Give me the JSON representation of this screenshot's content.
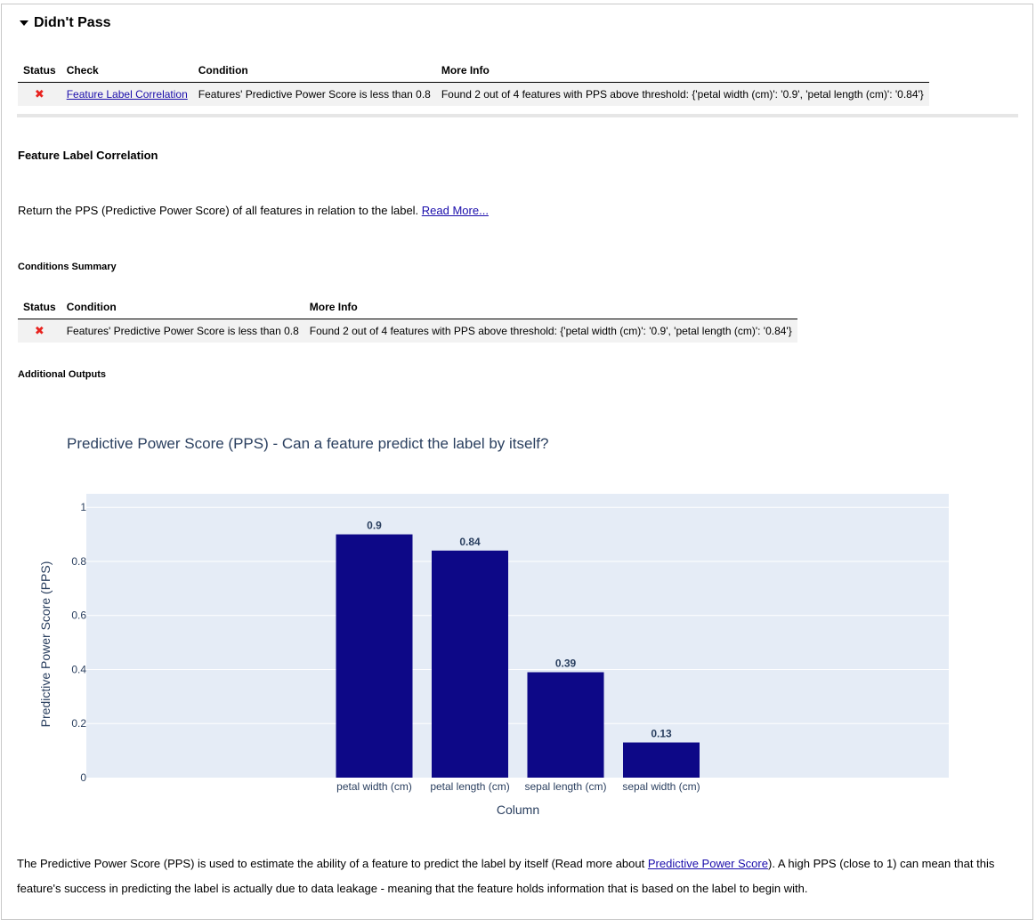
{
  "section": {
    "title": "Didn't Pass"
  },
  "summary_table": {
    "headers": [
      "Status",
      "Check",
      "Condition",
      "More Info"
    ],
    "rows": [
      {
        "status": "✖",
        "check": "Feature Label Correlation",
        "condition": "Features' Predictive Power Score is less than 0.8",
        "more_info": "Found 2 out of 4 features with PPS above threshold: {'petal width (cm)': '0.9', 'petal length (cm)': '0.84'}"
      }
    ]
  },
  "check": {
    "title": "Feature Label Correlation",
    "description": "Return the PPS (Predictive Power Score) of all features in relation to the label. ",
    "read_more": "Read More..."
  },
  "conditions_summary": {
    "title": "Conditions Summary",
    "headers": [
      "Status",
      "Condition",
      "More Info"
    ],
    "rows": [
      {
        "status": "✖",
        "condition": "Features' Predictive Power Score is less than 0.8",
        "more_info": "Found 2 out of 4 features with PPS above threshold: {'petal width (cm)': '0.9', 'petal length (cm)': '0.84'}"
      }
    ]
  },
  "additional_outputs": {
    "title": "Additional Outputs"
  },
  "chart_data": {
    "type": "bar",
    "title": "Predictive Power Score (PPS) - Can a feature predict the label by itself?",
    "categories": [
      "petal width (cm)",
      "petal length (cm)",
      "sepal length (cm)",
      "sepal width (cm)"
    ],
    "values": [
      0.9,
      0.84,
      0.39,
      0.13
    ],
    "value_labels": [
      "0.9",
      "0.84",
      "0.39",
      "0.13"
    ],
    "xlabel": "Column",
    "ylabel": "Predictive Power Score (PPS)",
    "ylim": [
      0,
      1.05
    ],
    "yticks": [
      0,
      0.2,
      0.4,
      0.6,
      0.8,
      1
    ],
    "ytick_labels": [
      "0",
      "0.2",
      "0.4",
      "0.6",
      "0.8",
      "1"
    ],
    "grid": true,
    "bar_color": "#0d0887",
    "plot_bg": "#e5ecf6"
  },
  "footer": {
    "text_before": "The Predictive Power Score (PPS) is used to estimate the ability of a feature to predict the label by itself (Read more about ",
    "link": "Predictive Power Score",
    "text_after": "). A high PPS (close to 1) can mean that this feature's success in predicting the label is actually due to data leakage - meaning that the feature holds information that is based on the label to begin with."
  }
}
